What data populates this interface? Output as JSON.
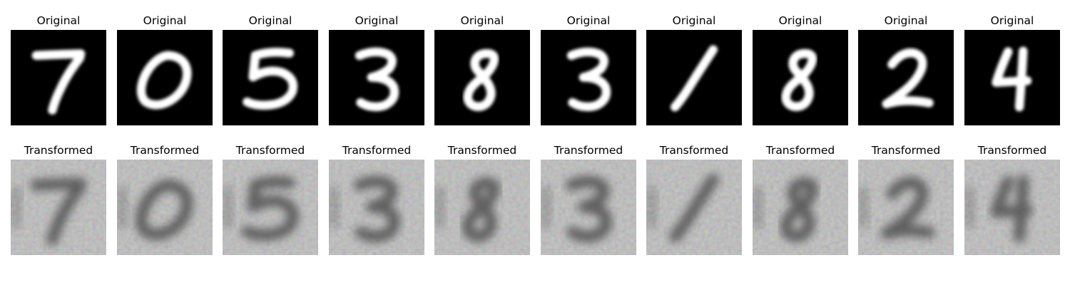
{
  "rows": [
    {
      "name": "original",
      "title": "Original",
      "digits": [
        "7",
        "0",
        "5",
        "3",
        "8",
        "3",
        "1",
        "8",
        "2",
        "4"
      ]
    },
    {
      "name": "transformed",
      "title": "Transformed",
      "digits": [
        "7",
        "0",
        "5",
        "3",
        "8",
        "3",
        "1",
        "8",
        "2",
        "4"
      ]
    }
  ],
  "colors": {
    "original_background": "#000000",
    "original_stroke": "#ffffff",
    "transformed_background": "#bdbdbd",
    "transformed_stroke": "#4a4a4a"
  }
}
